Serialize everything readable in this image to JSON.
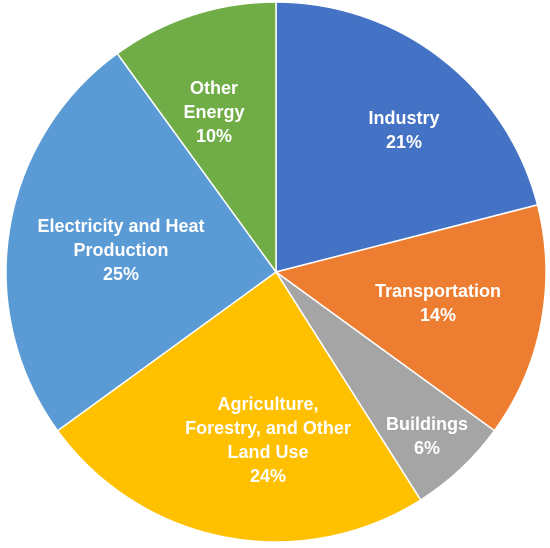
{
  "chart_data": {
    "type": "pie",
    "categories": [
      "Industry",
      "Transportation",
      "Buildings",
      "Agriculture, Forestry, and Other Land Use",
      "Electricity and Heat Production",
      "Other Energy"
    ],
    "values": [
      21,
      14,
      6,
      24,
      25,
      10
    ],
    "value_labels": [
      "21%",
      "14%",
      "6%",
      "24%",
      "25%",
      "10%"
    ],
    "colors": [
      "#4472c4",
      "#ed7d31",
      "#a5a5a5",
      "#ffc000",
      "#5b9bd5",
      "#70ad47"
    ]
  }
}
